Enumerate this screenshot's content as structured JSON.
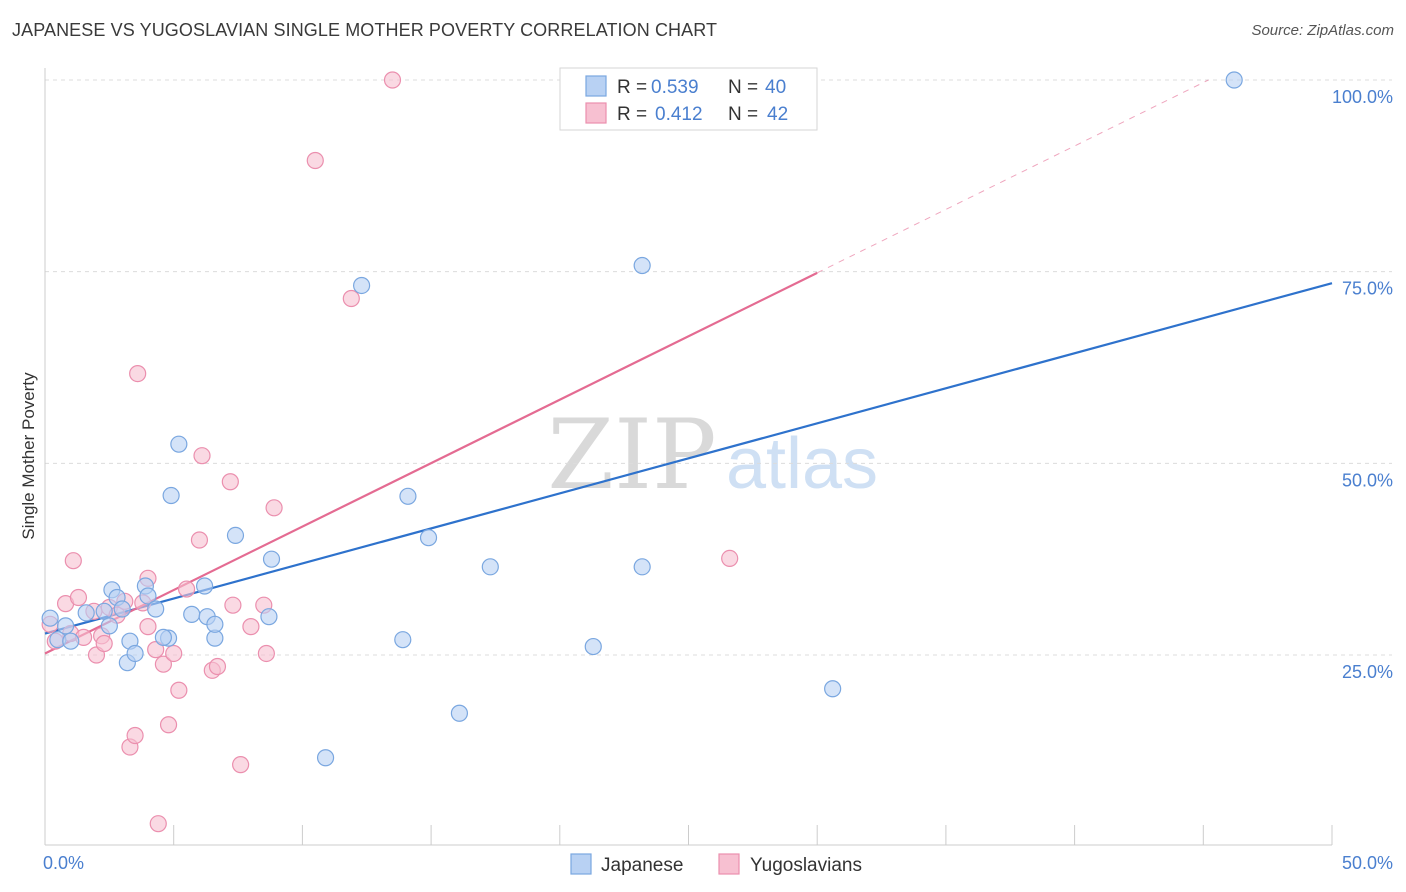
{
  "header": {
    "title": "JAPANESE VS YUGOSLAVIAN SINGLE MOTHER POVERTY CORRELATION CHART",
    "source": "Source: ZipAtlas.com"
  },
  "watermark": {
    "zip": "ZIP",
    "atlas": "atlas"
  },
  "colors": {
    "japanese_fill": "#b8d1f3",
    "japanese_stroke": "#7aa7e0",
    "japanese_line": "#2e72cc",
    "yugoslavian_fill": "#f7c0d1",
    "yugoslavian_stroke": "#eb8fae",
    "yugoslavian_line": "#e46b92",
    "tick_text": "#4a7fcf",
    "grid": "#dcdcdc"
  },
  "legend": {
    "r_label": "R =",
    "n_label": "N =",
    "rows": [
      {
        "series": "Japanese",
        "r": "0.539",
        "n": "40"
      },
      {
        "series": "Yugoslavians",
        "r": "0.412",
        "n": "42"
      }
    ]
  },
  "chart_data": {
    "type": "scatter",
    "title": "JAPANESE VS YUGOSLAVIAN SINGLE MOTHER POVERTY CORRELATION CHART",
    "xlabel": "",
    "ylabel": "Single Mother Poverty",
    "xlim": [
      0,
      50
    ],
    "ylim": [
      0,
      100
    ],
    "x_ticks": [
      0,
      5,
      10,
      15,
      20,
      25,
      30,
      35,
      40,
      45,
      50
    ],
    "x_tick_labels": [
      {
        "value": 0,
        "label": "0.0%"
      },
      {
        "value": 50,
        "label": "50.0%"
      }
    ],
    "y_tick_labels": [
      {
        "value": 25,
        "label": "25.0%"
      },
      {
        "value": 50,
        "label": "50.0%"
      },
      {
        "value": 75,
        "label": "75.0%"
      },
      {
        "value": 100,
        "label": "100.0%"
      }
    ],
    "grid": true,
    "legend_position": "top-center",
    "series": [
      {
        "name": "Japanese",
        "r": 0.539,
        "n": 40,
        "trend": {
          "x0": 0,
          "y0": 27.8,
          "x1": 50,
          "y1": 73.5,
          "solid_until": 50
        },
        "points": [
          [
            0.2,
            29.8
          ],
          [
            0.5,
            27.0
          ],
          [
            0.8,
            28.8
          ],
          [
            1.0,
            26.8
          ],
          [
            1.6,
            30.5
          ],
          [
            2.3,
            30.7
          ],
          [
            2.5,
            28.8
          ],
          [
            2.6,
            33.5
          ],
          [
            2.8,
            32.5
          ],
          [
            3.3,
            26.8
          ],
          [
            3.9,
            34.0
          ],
          [
            3.2,
            24.0
          ],
          [
            3.5,
            25.2
          ],
          [
            4.0,
            32.7
          ],
          [
            4.8,
            27.2
          ],
          [
            4.6,
            27.3
          ],
          [
            4.9,
            45.8
          ],
          [
            5.2,
            52.5
          ],
          [
            4.3,
            31.0
          ],
          [
            5.7,
            30.3
          ],
          [
            6.2,
            34.0
          ],
          [
            6.6,
            27.2
          ],
          [
            7.4,
            40.6
          ],
          [
            6.3,
            30.0
          ],
          [
            8.7,
            30.0
          ],
          [
            8.8,
            37.5
          ],
          [
            10.9,
            11.6
          ],
          [
            12.3,
            73.2
          ],
          [
            13.9,
            27.0
          ],
          [
            14.1,
            45.7
          ],
          [
            14.9,
            40.3
          ],
          [
            16.1,
            17.4
          ],
          [
            17.3,
            36.5
          ],
          [
            21.3,
            26.1
          ],
          [
            23.2,
            36.5
          ],
          [
            23.2,
            75.8
          ],
          [
            30.6,
            20.6
          ],
          [
            46.2,
            100.0
          ],
          [
            6.6,
            29.0
          ],
          [
            3.0,
            31.0
          ]
        ]
      },
      {
        "name": "Yugoslavians",
        "r": 0.412,
        "n": 42,
        "trend": {
          "x0": 0,
          "y0": 25.2,
          "x1": 45.2,
          "y1": 100.0,
          "solid_until": 30
        },
        "points": [
          [
            0.2,
            29.0
          ],
          [
            0.4,
            26.8
          ],
          [
            0.8,
            31.7
          ],
          [
            1.0,
            27.8
          ],
          [
            1.1,
            37.3
          ],
          [
            1.3,
            32.5
          ],
          [
            1.5,
            27.3
          ],
          [
            1.9,
            30.7
          ],
          [
            2.0,
            25.0
          ],
          [
            2.2,
            27.5
          ],
          [
            2.3,
            26.5
          ],
          [
            2.5,
            31.2
          ],
          [
            2.8,
            30.2
          ],
          [
            3.1,
            32.0
          ],
          [
            3.3,
            13.0
          ],
          [
            3.5,
            14.5
          ],
          [
            3.8,
            31.8
          ],
          [
            3.6,
            61.7
          ],
          [
            4.0,
            35.0
          ],
          [
            4.3,
            25.7
          ],
          [
            4.4,
            3.0
          ],
          [
            4.6,
            23.8
          ],
          [
            4.8,
            15.9
          ],
          [
            5.0,
            25.2
          ],
          [
            5.2,
            20.4
          ],
          [
            5.5,
            33.6
          ],
          [
            6.0,
            40.0
          ],
          [
            6.1,
            51.0
          ],
          [
            6.5,
            23.0
          ],
          [
            6.7,
            23.5
          ],
          [
            7.2,
            47.6
          ],
          [
            7.3,
            31.5
          ],
          [
            7.6,
            10.7
          ],
          [
            8.0,
            28.7
          ],
          [
            8.5,
            31.5
          ],
          [
            8.6,
            25.2
          ],
          [
            8.9,
            44.2
          ],
          [
            10.5,
            89.5
          ],
          [
            11.9,
            71.5
          ],
          [
            13.5,
            100.0
          ],
          [
            26.6,
            37.6
          ],
          [
            4.0,
            28.7
          ]
        ]
      }
    ],
    "bottom_legend": [
      "Japanese",
      "Yugoslavians"
    ]
  }
}
